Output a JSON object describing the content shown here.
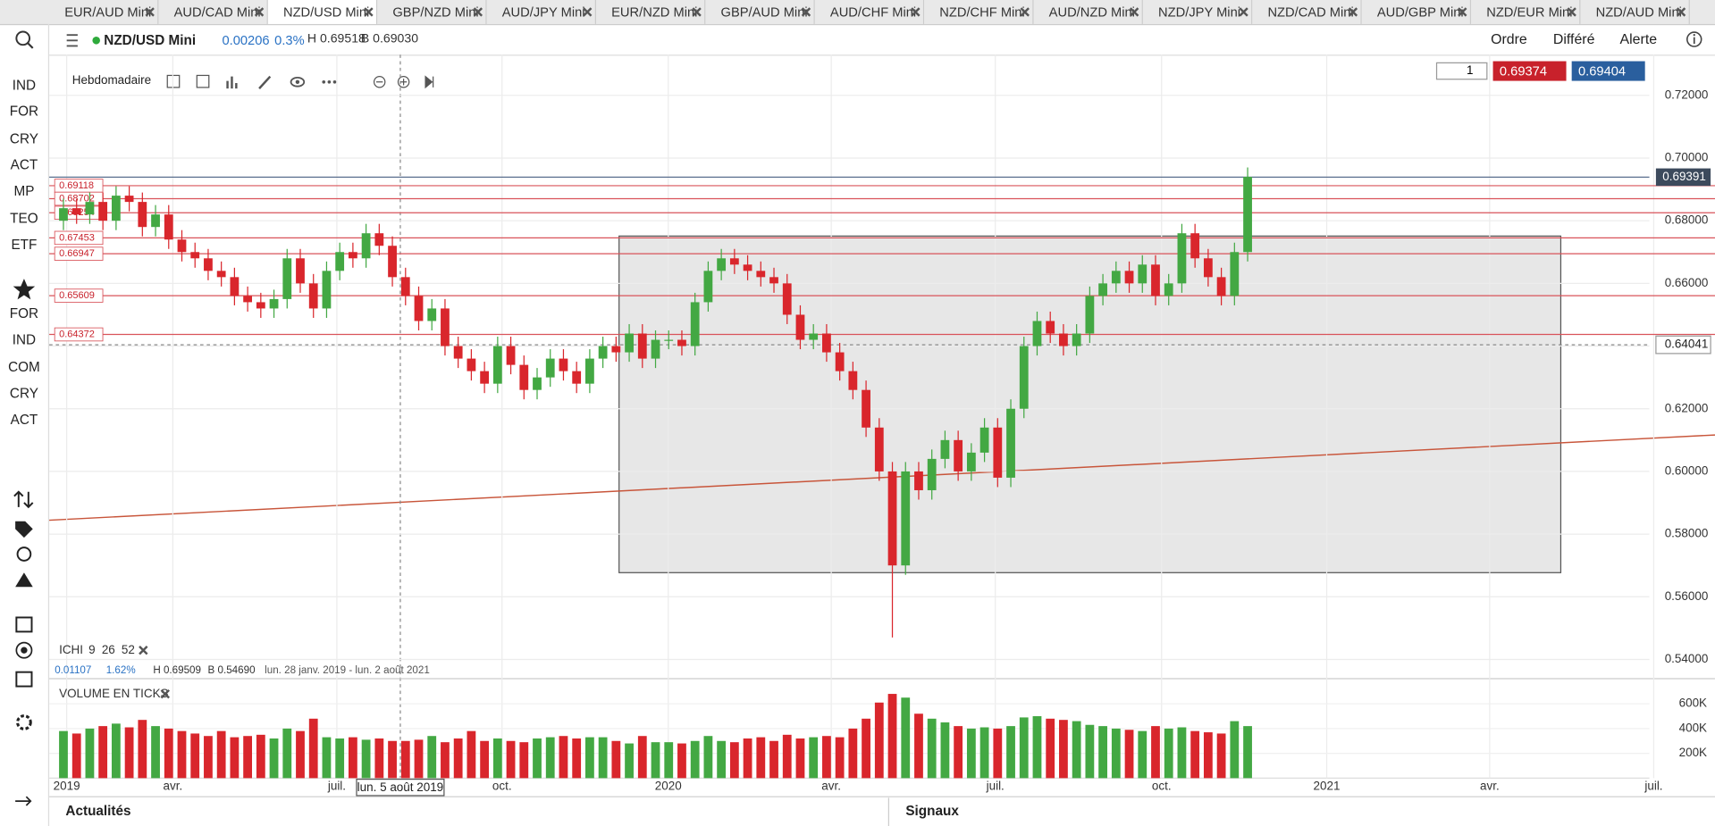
{
  "tabs": [
    "EUR/AUD Mini",
    "AUD/CAD Mini",
    "NZD/USD Mini",
    "GBP/NZD Mini",
    "AUD/JPY Mini",
    "EUR/NZD Mini",
    "GBP/AUD Mini",
    "AUD/CHF Mini",
    "NZD/CHF Mini",
    "AUD/NZD Mini",
    "NZD/JPY Mini",
    "NZD/CAD Mini",
    "AUD/GBP Mini",
    "NZD/EUR Mini",
    "NZD/AUD Mini"
  ],
  "sidebar": {
    "top": [
      "IND",
      "FOR",
      "CRY",
      "ACT",
      "MP",
      "TEO",
      "ETF"
    ],
    "bottom": [
      "FOR",
      "IND",
      "COM",
      "CRY",
      "ACT"
    ]
  },
  "header": {
    "instrument": "NZD/USD Mini",
    "change": "0.00206",
    "change_pct": "0.3%",
    "high": "H 0.69518",
    "low": "B 0.69030",
    "actions": [
      "Ordre",
      "Différé",
      "Alerte"
    ]
  },
  "toolbar": {
    "period": "Hebdomadaire"
  },
  "trade": {
    "quantity": "1",
    "sell": "0.69374",
    "buy": "0.69404"
  },
  "indicator": {
    "name": "ICHI",
    "params": [
      "9",
      "26",
      "52"
    ],
    "change": "0.01107",
    "change_pct": "1.62%",
    "high": "H 0.69509",
    "low": "B 0.54690",
    "range": "lun. 28 janv. 2019 - lun. 2 août 2021"
  },
  "volume_panel": {
    "title": "VOLUME EN TICKS"
  },
  "footer": {
    "left": "Actualités",
    "right": "Signaux"
  },
  "chart_data": [
    {
      "type": "candlestick",
      "up_color": "#43a843",
      "down_color": "#d9262c",
      "ylim": [
        0.537,
        0.733
      ],
      "yticks": [
        {
          "value": 0.72,
          "label": "0.72000"
        },
        {
          "value": 0.7,
          "label": "0.70000"
        },
        {
          "value": 0.68,
          "label": "0.68000"
        },
        {
          "value": 0.66,
          "label": "0.66000"
        },
        {
          "value": 0.64,
          "label": "0.64000"
        },
        {
          "value": 0.62,
          "label": "0.62000"
        },
        {
          "value": 0.6,
          "label": "0.60000"
        },
        {
          "value": 0.58,
          "label": "0.58000"
        },
        {
          "value": 0.56,
          "label": "0.56000"
        },
        {
          "value": 0.54,
          "label": "0.54000"
        }
      ],
      "x_labels": [
        "2019",
        "avr.",
        "juil.",
        "oct.",
        "2020",
        "avr.",
        "juil.",
        "oct.",
        "2021",
        "avr.",
        "juil."
      ],
      "crosshair_date": "lun. 5 août 2019",
      "crosshair_price": 0.64041,
      "last_price": 0.69391,
      "levels": [
        0.69118,
        0.68702,
        0.68254,
        0.67453,
        0.66947,
        0.65609,
        0.64372
      ],
      "open": [
        0.68,
        0.684,
        0.682,
        0.686,
        0.68,
        0.688,
        0.686,
        0.678,
        0.682,
        0.674,
        0.67,
        0.668,
        0.664,
        0.662,
        0.656,
        0.654,
        0.652,
        0.655,
        0.668,
        0.66,
        0.652,
        0.664,
        0.67,
        0.668,
        0.676,
        0.672,
        0.662,
        0.656,
        0.648,
        0.652,
        0.64,
        0.636,
        0.632,
        0.628,
        0.64,
        0.634,
        0.626,
        0.63,
        0.636,
        0.632,
        0.628,
        0.636,
        0.64,
        0.638,
        0.644,
        0.636,
        0.642,
        0.642,
        0.64,
        0.654,
        0.664,
        0.668,
        0.666,
        0.664,
        0.662,
        0.66,
        0.65,
        0.642,
        0.644,
        0.638,
        0.632,
        0.626,
        0.614,
        0.6,
        0.57,
        0.6,
        0.594,
        0.604,
        0.61,
        0.6,
        0.606,
        0.614,
        0.598,
        0.62,
        0.64,
        0.648,
        0.644,
        0.64,
        0.644,
        0.656,
        0.66,
        0.664,
        0.66,
        0.666,
        0.656,
        0.66,
        0.676,
        0.668,
        0.662,
        0.656,
        0.67
      ],
      "high": [
        0.687,
        0.687,
        0.689,
        0.689,
        0.691,
        0.691,
        0.689,
        0.685,
        0.685,
        0.677,
        0.673,
        0.671,
        0.667,
        0.665,
        0.659,
        0.657,
        0.658,
        0.671,
        0.671,
        0.663,
        0.667,
        0.673,
        0.673,
        0.679,
        0.679,
        0.675,
        0.665,
        0.659,
        0.655,
        0.655,
        0.643,
        0.639,
        0.635,
        0.643,
        0.643,
        0.637,
        0.633,
        0.639,
        0.639,
        0.635,
        0.639,
        0.643,
        0.643,
        0.647,
        0.647,
        0.645,
        0.645,
        0.645,
        0.657,
        0.667,
        0.671,
        0.671,
        0.669,
        0.667,
        0.665,
        0.663,
        0.653,
        0.647,
        0.647,
        0.641,
        0.635,
        0.629,
        0.617,
        0.603,
        0.603,
        0.603,
        0.607,
        0.613,
        0.613,
        0.609,
        0.617,
        0.617,
        0.623,
        0.643,
        0.651,
        0.651,
        0.647,
        0.647,
        0.659,
        0.663,
        0.667,
        0.667,
        0.669,
        0.669,
        0.663,
        0.679,
        0.679,
        0.671,
        0.665,
        0.673,
        0.697
      ],
      "low": [
        0.677,
        0.679,
        0.679,
        0.677,
        0.677,
        0.683,
        0.675,
        0.675,
        0.671,
        0.667,
        0.665,
        0.661,
        0.659,
        0.653,
        0.651,
        0.649,
        0.649,
        0.652,
        0.657,
        0.649,
        0.649,
        0.661,
        0.665,
        0.665,
        0.669,
        0.659,
        0.653,
        0.645,
        0.645,
        0.637,
        0.633,
        0.629,
        0.625,
        0.625,
        0.631,
        0.623,
        0.623,
        0.627,
        0.629,
        0.625,
        0.625,
        0.633,
        0.635,
        0.635,
        0.633,
        0.633,
        0.639,
        0.637,
        0.637,
        0.651,
        0.661,
        0.663,
        0.661,
        0.659,
        0.657,
        0.647,
        0.639,
        0.639,
        0.635,
        0.629,
        0.623,
        0.611,
        0.597,
        0.547,
        0.567,
        0.591,
        0.591,
        0.601,
        0.597,
        0.597,
        0.603,
        0.595,
        0.595,
        0.617,
        0.637,
        0.641,
        0.637,
        0.637,
        0.641,
        0.653,
        0.657,
        0.657,
        0.657,
        0.653,
        0.653,
        0.657,
        0.665,
        0.659,
        0.653,
        0.653,
        0.667
      ],
      "close": [
        0.684,
        0.682,
        0.686,
        0.68,
        0.688,
        0.686,
        0.678,
        0.682,
        0.674,
        0.67,
        0.668,
        0.664,
        0.662,
        0.656,
        0.654,
        0.652,
        0.655,
        0.668,
        0.66,
        0.652,
        0.664,
        0.67,
        0.668,
        0.676,
        0.672,
        0.662,
        0.656,
        0.648,
        0.652,
        0.64,
        0.636,
        0.632,
        0.628,
        0.64,
        0.634,
        0.626,
        0.63,
        0.636,
        0.632,
        0.628,
        0.636,
        0.64,
        0.638,
        0.644,
        0.636,
        0.642,
        0.642,
        0.64,
        0.654,
        0.664,
        0.668,
        0.666,
        0.664,
        0.662,
        0.66,
        0.65,
        0.642,
        0.644,
        0.638,
        0.632,
        0.626,
        0.614,
        0.6,
        0.57,
        0.6,
        0.594,
        0.604,
        0.61,
        0.6,
        0.606,
        0.614,
        0.598,
        0.62,
        0.64,
        0.648,
        0.644,
        0.64,
        0.644,
        0.656,
        0.66,
        0.664,
        0.66,
        0.666,
        0.656,
        0.66,
        0.676,
        0.668,
        0.662,
        0.656,
        0.67,
        0.694
      ]
    },
    {
      "type": "bar",
      "ylim": [
        0,
        750000
      ],
      "yticks": [
        {
          "value": 600000,
          "label": "600K"
        },
        {
          "value": 400000,
          "label": "400K"
        },
        {
          "value": 200000,
          "label": "200K"
        }
      ],
      "values": [
        380000,
        360000,
        400000,
        420000,
        440000,
        410000,
        470000,
        420000,
        400000,
        380000,
        360000,
        340000,
        380000,
        330000,
        340000,
        350000,
        320000,
        400000,
        380000,
        480000,
        330000,
        320000,
        330000,
        310000,
        320000,
        300000,
        300000,
        310000,
        340000,
        290000,
        320000,
        380000,
        300000,
        320000,
        300000,
        290000,
        320000,
        330000,
        340000,
        320000,
        330000,
        330000,
        300000,
        280000,
        340000,
        290000,
        290000,
        280000,
        300000,
        340000,
        300000,
        290000,
        320000,
        330000,
        300000,
        350000,
        320000,
        330000,
        340000,
        330000,
        400000,
        480000,
        610000,
        680000,
        650000,
        520000,
        480000,
        450000,
        420000,
        400000,
        410000,
        400000,
        420000,
        490000,
        500000,
        480000,
        470000,
        460000,
        430000,
        420000,
        400000,
        390000,
        380000,
        420000,
        400000,
        410000,
        380000,
        370000,
        360000,
        460000,
        420000
      ]
    }
  ]
}
